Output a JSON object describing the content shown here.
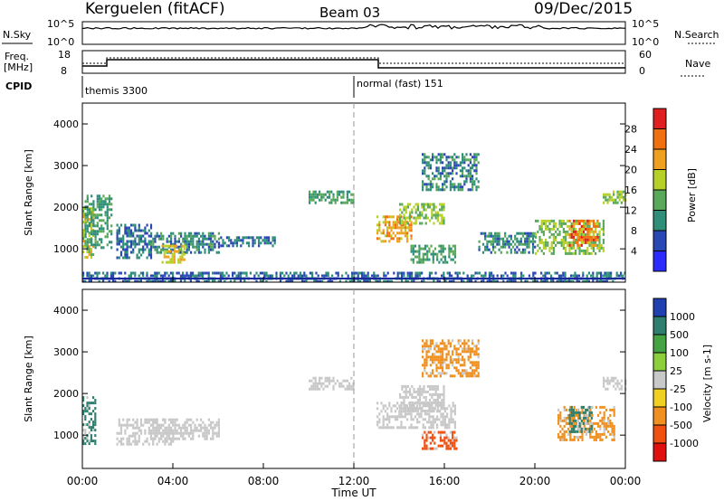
{
  "header": {
    "title": "Kerguelen (fitACF)",
    "beam": "Beam 03",
    "date": "09/Dec/2015"
  },
  "panels": {
    "nsky_label": "N.Sky",
    "nsky_ticks": [
      "10^5",
      "10^0"
    ],
    "nsearch_label": "N.Search",
    "nsearch_ticks": [
      "10^5",
      "10^0"
    ],
    "freq_label": "Freq.",
    "freq_unit": "[MHz]",
    "freq_ticks": [
      "18",
      "8"
    ],
    "nave_label": "Nave",
    "nave_ticks": [
      "60",
      "0"
    ],
    "cpid_label": "CPID",
    "cpid_segments": [
      "themis 3300",
      "normal (fast) 151"
    ]
  },
  "chart_data": [
    {
      "type": "heatmap",
      "name": "power",
      "ylabel": "Slant Range [km]",
      "yticks": [
        "1000",
        "2000",
        "3000",
        "4000"
      ],
      "ylim": [
        200,
        4500
      ],
      "colorbar_label": "Power [dB]",
      "colorbar_ticks": [
        "4",
        "8",
        "12",
        "16",
        "20",
        "24",
        "28"
      ],
      "colorbar_colors": [
        "#2b2bff",
        "#2a48b4",
        "#2f8e78",
        "#5aa85a",
        "#b6d028",
        "#f0a020",
        "#f07010",
        "#e02020"
      ],
      "patches": [
        {
          "t": [
            0.0,
            0.5
          ],
          "r": [
            800,
            2000
          ],
          "v": 18
        },
        {
          "t": [
            0.1,
            1.3
          ],
          "r": [
            1000,
            2300
          ],
          "v": 12
        },
        {
          "t": [
            1.5,
            3.0
          ],
          "r": [
            800,
            1600
          ],
          "v": 8
        },
        {
          "t": [
            3.0,
            6.0
          ],
          "r": [
            900,
            1400
          ],
          "v": 10
        },
        {
          "t": [
            6.0,
            8.5
          ],
          "r": [
            1100,
            1300
          ],
          "v": 8
        },
        {
          "t": [
            3.5,
            4.5
          ],
          "r": [
            700,
            1100
          ],
          "v": 20
        },
        {
          "t": [
            10.0,
            12.0
          ],
          "r": [
            2100,
            2400
          ],
          "v": 12
        },
        {
          "t": [
            13.0,
            14.5
          ],
          "r": [
            1200,
            1800
          ],
          "v": 22
        },
        {
          "t": [
            14.0,
            16.0
          ],
          "r": [
            1600,
            2100
          ],
          "v": 16
        },
        {
          "t": [
            15.0,
            17.5
          ],
          "r": [
            2400,
            3300
          ],
          "v": 10
        },
        {
          "t": [
            14.5,
            16.5
          ],
          "r": [
            700,
            1100
          ],
          "v": 12
        },
        {
          "t": [
            17.5,
            20.0
          ],
          "r": [
            900,
            1400
          ],
          "v": 10
        },
        {
          "t": [
            20.0,
            23.0
          ],
          "r": [
            900,
            1700
          ],
          "v": 16
        },
        {
          "t": [
            21.5,
            22.8
          ],
          "r": [
            1100,
            1700
          ],
          "v": 26
        },
        {
          "t": [
            23.0,
            24.0
          ],
          "r": [
            2100,
            2400
          ],
          "v": 16
        },
        {
          "t": [
            0.0,
            24.0
          ],
          "r": [
            250,
            450
          ],
          "v": 8
        }
      ]
    },
    {
      "type": "heatmap",
      "name": "velocity",
      "ylabel": "Slant Range [km]",
      "yticks": [
        "1000",
        "2000",
        "3000",
        "4000"
      ],
      "ylim": [
        200,
        4500
      ],
      "xlabel": "Time UT",
      "xticks": [
        "00:00",
        "04:00",
        "08:00",
        "12:00",
        "16:00",
        "20:00",
        "00:00"
      ],
      "xlim": [
        0,
        24
      ],
      "colorbar_label": "Velocity [m s-1]",
      "colorbar_ticks": [
        "1000",
        "500",
        "100",
        "25",
        "-25",
        "-100",
        "-500",
        "-1000"
      ],
      "colorbar_colors": [
        "#2040b0",
        "#2f7f6f",
        "#44a444",
        "#8ccf3c",
        "#c8c8c8",
        "#f0d020",
        "#f09020",
        "#f05010",
        "#e01010"
      ],
      "patches": [
        {
          "t": [
            0.0,
            0.6
          ],
          "r": [
            800,
            2000
          ],
          "v": "pos_mid"
        },
        {
          "t": [
            1.5,
            4.0
          ],
          "r": [
            800,
            1400
          ],
          "v": "neutral"
        },
        {
          "t": [
            3.0,
            6.0
          ],
          "r": [
            900,
            1400
          ],
          "v": "neutral"
        },
        {
          "t": [
            10.0,
            12.0
          ],
          "r": [
            2100,
            2400
          ],
          "v": "neutral"
        },
        {
          "t": [
            13.0,
            16.5
          ],
          "r": [
            1200,
            1800
          ],
          "v": "neutral"
        },
        {
          "t": [
            14.0,
            16.0
          ],
          "r": [
            1600,
            2200
          ],
          "v": "neutral"
        },
        {
          "t": [
            15.0,
            17.5
          ],
          "r": [
            2400,
            3300
          ],
          "v": "neg_mid"
        },
        {
          "t": [
            15.0,
            16.5
          ],
          "r": [
            700,
            1100
          ],
          "v": "neg_high"
        },
        {
          "t": [
            21.0,
            23.5
          ],
          "r": [
            900,
            1700
          ],
          "v": "neg_mid"
        },
        {
          "t": [
            21.5,
            22.5
          ],
          "r": [
            1100,
            1700
          ],
          "v": "pos_mid"
        },
        {
          "t": [
            23.0,
            24.0
          ],
          "r": [
            2100,
            2400
          ],
          "v": "neutral"
        }
      ]
    }
  ]
}
